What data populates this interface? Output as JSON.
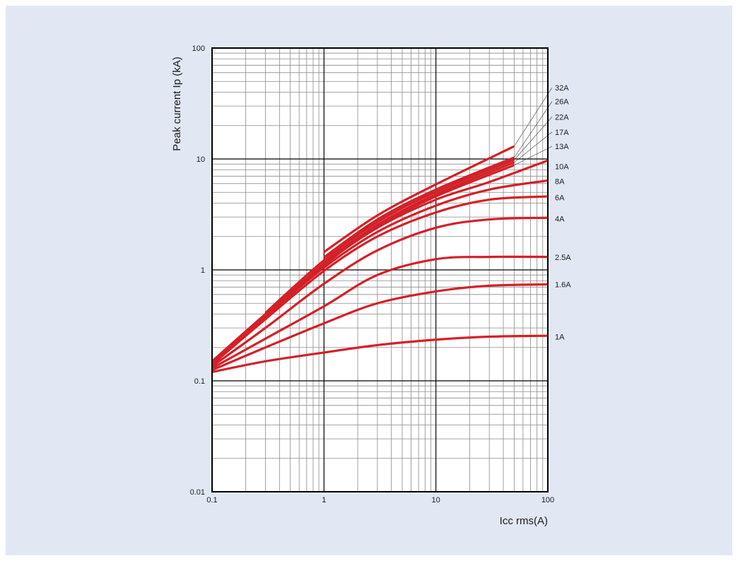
{
  "chart_data": {
    "type": "line",
    "x_scale": "log",
    "y_scale": "log",
    "xlim": [
      0.1,
      100
    ],
    "ylim": [
      0.01,
      100
    ],
    "grid": true,
    "xlabel": "Icc rms(A)",
    "ylabel": "Peak current Ip (kA)",
    "x_ticks": [
      {
        "v": 0.1,
        "label": "0.1"
      },
      {
        "v": 1,
        "label": "1"
      },
      {
        "v": 10,
        "label": "10"
      },
      {
        "v": 100,
        "label": "100"
      }
    ],
    "y_ticks": [
      {
        "v": 0.01,
        "label": "0.01"
      },
      {
        "v": 0.1,
        "label": "0.1"
      },
      {
        "v": 1,
        "label": "1"
      },
      {
        "v": 10,
        "label": "10"
      },
      {
        "v": 100,
        "label": "100"
      }
    ],
    "line_color": "#d42027",
    "background_color": "#e1e8f4",
    "series": [
      {
        "name": "1A",
        "label_y": 0.25,
        "points": [
          [
            0.1,
            0.12
          ],
          [
            0.3,
            0.15
          ],
          [
            1,
            0.18
          ],
          [
            3,
            0.21
          ],
          [
            10,
            0.235
          ],
          [
            30,
            0.25
          ],
          [
            100,
            0.255
          ]
        ]
      },
      {
        "name": "1.6A",
        "label_y": 0.74,
        "points": [
          [
            0.1,
            0.125
          ],
          [
            0.3,
            0.2
          ],
          [
            1,
            0.33
          ],
          [
            3,
            0.5
          ],
          [
            10,
            0.64
          ],
          [
            30,
            0.72
          ],
          [
            100,
            0.74
          ]
        ]
      },
      {
        "name": "2.5A",
        "label_y": 1.3,
        "points": [
          [
            0.1,
            0.13
          ],
          [
            0.3,
            0.24
          ],
          [
            1,
            0.47
          ],
          [
            3,
            0.9
          ],
          [
            10,
            1.25
          ],
          [
            30,
            1.31
          ],
          [
            100,
            1.31
          ]
        ]
      },
      {
        "name": "4A",
        "label_y": 2.9,
        "points": [
          [
            0.1,
            0.135
          ],
          [
            0.3,
            0.3
          ],
          [
            1,
            0.75
          ],
          [
            3,
            1.5
          ],
          [
            10,
            2.4
          ],
          [
            30,
            2.85
          ],
          [
            100,
            2.95
          ]
        ]
      },
      {
        "name": "6A",
        "label_y": 4.5,
        "points": [
          [
            0.1,
            0.14
          ],
          [
            0.3,
            0.36
          ],
          [
            1,
            0.98
          ],
          [
            3,
            2.0
          ],
          [
            10,
            3.3
          ],
          [
            30,
            4.3
          ],
          [
            100,
            4.6
          ]
        ]
      },
      {
        "name": "8A",
        "label_y": 6.3,
        "points": [
          [
            0.1,
            0.145
          ],
          [
            0.3,
            0.38
          ],
          [
            1,
            1.05
          ],
          [
            3,
            2.2
          ],
          [
            10,
            3.8
          ],
          [
            30,
            5.3
          ],
          [
            100,
            6.4
          ]
        ]
      },
      {
        "name": "10A",
        "label_y": 8.6,
        "points": [
          [
            0.1,
            0.15
          ],
          [
            0.3,
            0.4
          ],
          [
            1,
            1.12
          ],
          [
            3,
            2.4
          ],
          [
            10,
            4.3
          ],
          [
            30,
            6.2
          ],
          [
            100,
            9.7
          ]
        ]
      },
      {
        "name": "13A",
        "label_y": 13.0,
        "points": [
          [
            0.3,
            0.36
          ],
          [
            1,
            1.1
          ],
          [
            3,
            2.45
          ],
          [
            10,
            4.6
          ],
          [
            50,
            8.8
          ]
        ]
      },
      {
        "name": "17A",
        "label_y": 17.5,
        "points": [
          [
            0.3,
            0.38
          ],
          [
            1,
            1.15
          ],
          [
            3,
            2.55
          ],
          [
            10,
            4.8
          ],
          [
            50,
            9.3
          ]
        ]
      },
      {
        "name": "22A",
        "label_y": 24.0,
        "points": [
          [
            0.3,
            0.41
          ],
          [
            1,
            1.22
          ],
          [
            3,
            2.7
          ],
          [
            10,
            5.05
          ],
          [
            50,
            9.8
          ]
        ]
      },
      {
        "name": "26A",
        "label_y": 33.0,
        "points": [
          [
            1,
            1.3
          ],
          [
            3,
            2.85
          ],
          [
            10,
            5.3
          ],
          [
            50,
            10.3
          ]
        ]
      },
      {
        "name": "32A",
        "label_y": 44.0,
        "points": [
          [
            1,
            1.45
          ],
          [
            3,
            3.1
          ],
          [
            10,
            5.9
          ],
          [
            50,
            13.0
          ]
        ]
      }
    ]
  }
}
